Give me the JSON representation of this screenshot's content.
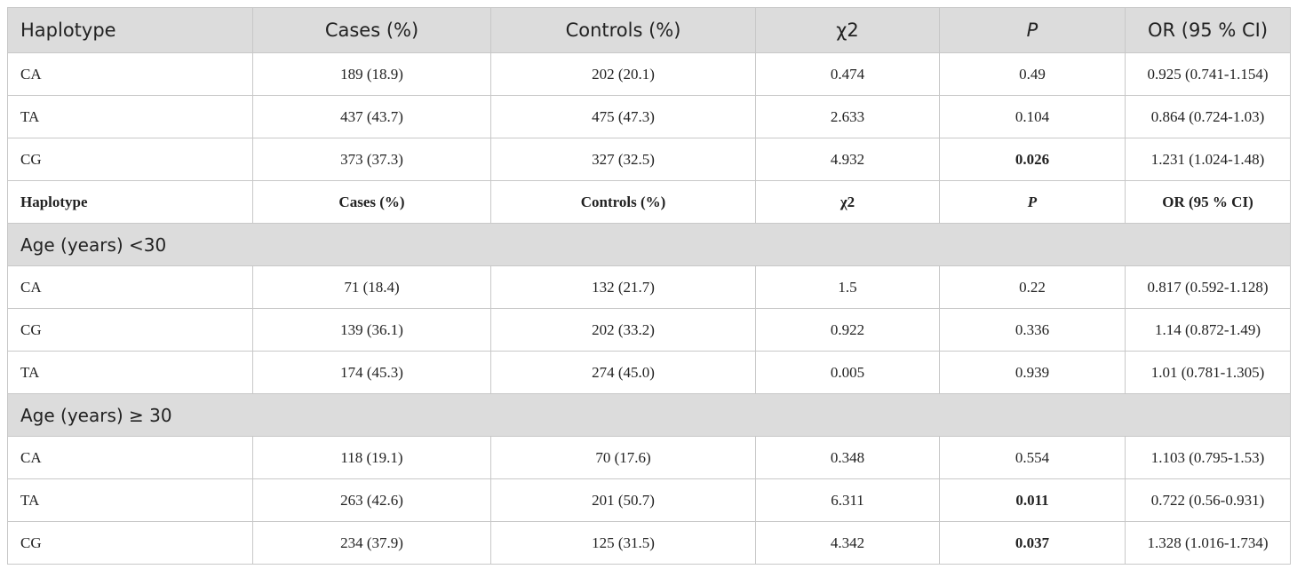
{
  "header": {
    "haplotype": "Haplotype",
    "cases": "Cases (%)",
    "controls": "Controls (%)",
    "chi2": "χ2",
    "p": "P",
    "or": "OR (95 % CI)"
  },
  "overall": [
    {
      "haplotype": "CA",
      "cases": "189 (18.9)",
      "controls": "202 (20.1)",
      "chi2": "0.474",
      "p": "0.49",
      "p_bold": false,
      "or": "0.925 (0.741-1.154)"
    },
    {
      "haplotype": "TA",
      "cases": "437 (43.7)",
      "controls": "475 (47.3)",
      "chi2": "2.633",
      "p": "0.104",
      "p_bold": false,
      "or": "0.864 (0.724-1.03)"
    },
    {
      "haplotype": "CG",
      "cases": "373 (37.3)",
      "controls": "327 (32.5)",
      "chi2": "4.932",
      "p": "0.026",
      "p_bold": true,
      "or": "1.231 (1.024-1.48)"
    }
  ],
  "subheader": {
    "haplotype": "Haplotype",
    "cases": "Cases (%)",
    "controls": "Controls (%)",
    "chi2": "χ2",
    "p": "P",
    "or": "OR (95 % CI)"
  },
  "group_under30": {
    "label": "Age (years) <30",
    "rows": [
      {
        "haplotype": "CA",
        "cases": "71 (18.4)",
        "controls": "132 (21.7)",
        "chi2": "1.5",
        "p": "0.22",
        "p_bold": false,
        "or": "0.817 (0.592-1.128)"
      },
      {
        "haplotype": "CG",
        "cases": "139 (36.1)",
        "controls": "202 (33.2)",
        "chi2": "0.922",
        "p": "0.336",
        "p_bold": false,
        "or": "1.14 (0.872-1.49)"
      },
      {
        "haplotype": "TA",
        "cases": "174 (45.3)",
        "controls": "274 (45.0)",
        "chi2": "0.005",
        "p": "0.939",
        "p_bold": false,
        "or": "1.01 (0.781-1.305)"
      }
    ]
  },
  "group_over30": {
    "label": "Age (years) ≥ 30",
    "rows": [
      {
        "haplotype": "CA",
        "cases": "118 (19.1)",
        "controls": "70 (17.6)",
        "chi2": "0.348",
        "p": "0.554",
        "p_bold": false,
        "or": "1.103 (0.795-1.53)"
      },
      {
        "haplotype": "TA",
        "cases": "263 (42.6)",
        "controls": "201 (50.7)",
        "chi2": "6.311",
        "p": "0.011",
        "p_bold": true,
        "or": "0.722 (0.56-0.931)"
      },
      {
        "haplotype": "CG",
        "cases": "234 (37.9)",
        "controls": "125 (31.5)",
        "chi2": "4.342",
        "p": "0.037",
        "p_bold": true,
        "or": "1.328 (1.016-1.734)"
      }
    ]
  }
}
